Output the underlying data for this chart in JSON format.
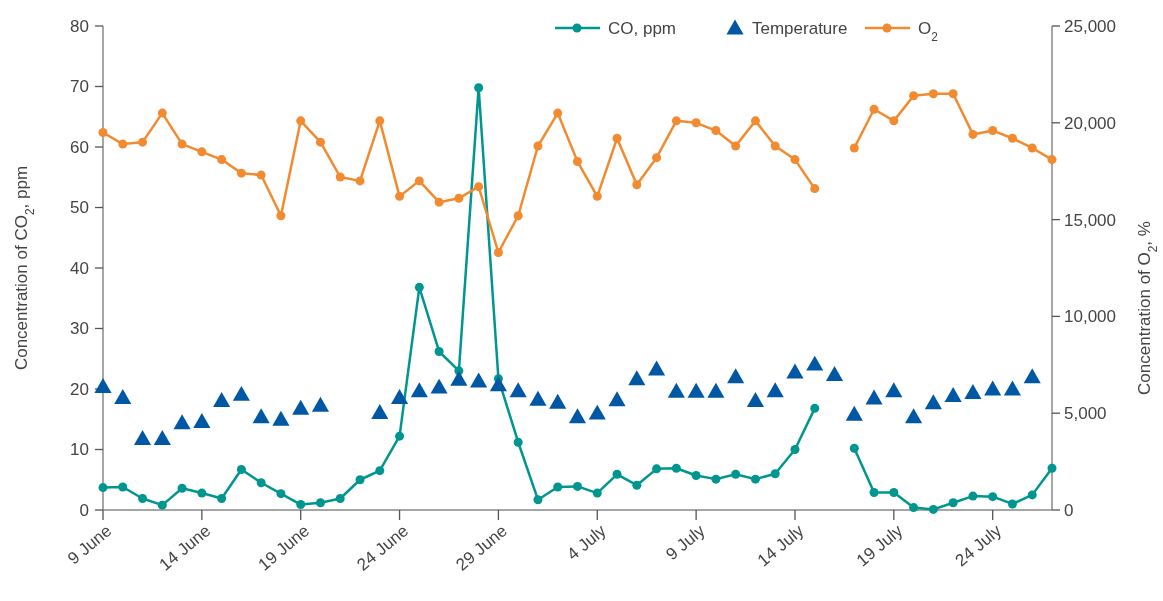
{
  "chart_data": {
    "type": "line",
    "x": [
      "--06-09",
      "--06-10",
      "--06-11",
      "--06-12",
      "--06-13",
      "--06-14",
      "--06-15",
      "--06-16",
      "--06-17",
      "--06-18",
      "--06-19",
      "--06-20",
      "--06-21",
      "--06-22",
      "--06-23",
      "--06-24",
      "--06-25",
      "--06-26",
      "--06-27",
      "--06-28",
      "--06-29",
      "--06-30",
      "--07-01",
      "--07-02",
      "--07-03",
      "--07-04",
      "--07-05",
      "--07-06",
      "--07-07",
      "--07-08",
      "--07-09",
      "--07-10",
      "--07-11",
      "--07-12",
      "--07-13",
      "--07-14",
      "--07-15",
      "--07-16",
      "--07-17",
      "--07-18",
      "--07-19",
      "--07-20",
      "--07-21",
      "--07-22",
      "--07-23",
      "--07-24",
      "--07-25",
      "--07-26",
      "--07-27"
    ],
    "ylabel": "Concentration of CO$_{2}$, ppm",
    "y2label": "Concentration of O$_{2}$, %",
    "xlim": [
      "--06-09",
      "--07-27"
    ],
    "xticks": [
      {
        "value": "--06-09",
        "label": "9 June"
      },
      {
        "value": "--06-14",
        "label": "14 June"
      },
      {
        "value": "--06-19",
        "label": "19 June"
      },
      {
        "value": "--06-24",
        "label": "24 June"
      },
      {
        "value": "--06-29",
        "label": "29 June"
      },
      {
        "value": "--07-04",
        "label": "4 July"
      },
      {
        "value": "--07-09",
        "label": "9 July"
      },
      {
        "value": "--07-14",
        "label": "14 July"
      },
      {
        "value": "--07-19",
        "label": "19 July"
      },
      {
        "value": "--07-24",
        "label": "24 July"
      }
    ],
    "ylim": [
      0,
      80
    ],
    "yticks": [
      0,
      10,
      20,
      30,
      40,
      50,
      60,
      70,
      80
    ],
    "y2lim": [
      0,
      25000
    ],
    "y2ticks": [
      0,
      {
        "value": 5000,
        "label": "5,000"
      },
      {
        "value": 10000,
        "label": "10,000"
      },
      {
        "value": 15000,
        "label": "15,000"
      },
      {
        "value": 20000,
        "label": "20,000"
      },
      {
        "value": 25000,
        "label": "25,000"
      }
    ],
    "grid": false,
    "legend": "top right",
    "line_style": "solid",
    "series": [
      {
        "name": "CO, ppm",
        "marker": "circle",
        "color": "#009690",
        "values": [
          3.7,
          3.8,
          1.9,
          0.8,
          3.6,
          2.8,
          1.9,
          6.7,
          4.5,
          2.7,
          0.9,
          1.2,
          1.9,
          5,
          6.5,
          12.2,
          36.8,
          26.2,
          23,
          69.8,
          21.7,
          11.2,
          1.7,
          3.8,
          3.9,
          2.8,
          5.9,
          4.1,
          6.8,
          6.9,
          5.7,
          5.1,
          5.9,
          5.1,
          6,
          10,
          16.8,
          null,
          10.2,
          2.9,
          2.9,
          0.4,
          0.1,
          1.2,
          2.3,
          2.2,
          1,
          2.5,
          6.9
        ]
      },
      {
        "name": "Temperature",
        "type": "scatter",
        "marker": "triangle",
        "color": "#0057a3",
        "values": [
          20.4,
          18.6,
          11.8,
          11.8,
          14.4,
          14.6,
          18.1,
          19.1,
          15.4,
          15,
          16.8,
          17.3,
          null,
          null,
          16.1,
          18.6,
          19.7,
          20.3,
          21.6,
          21.3,
          20.7,
          19.7,
          18.3,
          17.8,
          15.4,
          16,
          18.2,
          21.7,
          23.3,
          19.6,
          19.6,
          19.6,
          22,
          18.1,
          19.7,
          22.8,
          24.1,
          22.4,
          15.8,
          18.5,
          19.7,
          15.4,
          17.7,
          18.9,
          19.4,
          20,
          20,
          22,
          null
        ]
      },
      {
        "name": "O$_{2}$",
        "axis": "y2",
        "marker": "circle",
        "color": "#f28a30",
        "values": [
          19500,
          18900,
          19000,
          20500,
          18900,
          18500,
          18100,
          17400,
          17300,
          15200,
          20100,
          19000,
          17200,
          17000,
          20100,
          16200,
          17000,
          15900,
          16100,
          16700,
          13300,
          15200,
          18800,
          20500,
          18000,
          16200,
          19200,
          16800,
          18200,
          20100,
          20000,
          19600,
          18800,
          20100,
          18800,
          18100,
          16600,
          null,
          18700,
          20700,
          20100,
          21400,
          21500,
          21500,
          19400,
          19600,
          19200,
          18700,
          18100
        ]
      }
    ]
  }
}
